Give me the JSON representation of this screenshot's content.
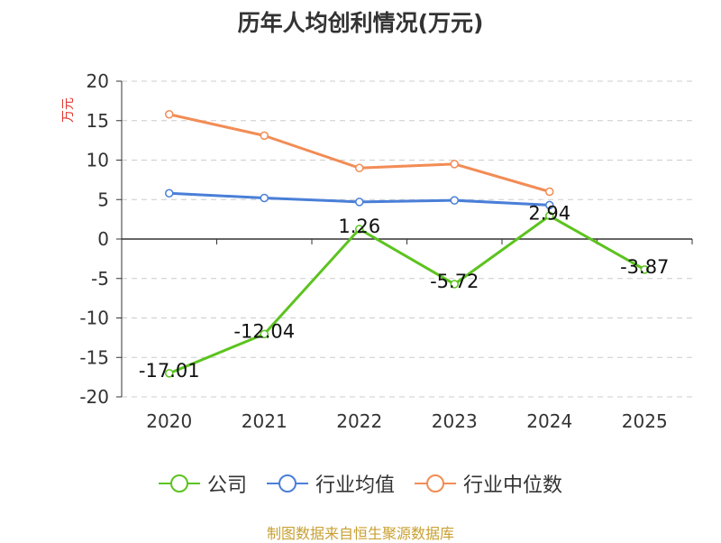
{
  "title": "历年人均创利情况(万元)",
  "source_note": "制图数据来自恒生聚源数据库",
  "chart_data": {
    "type": "line",
    "title": "历年人均创利情况(万元)",
    "ylabel": "万元",
    "xlabel": "",
    "categories": [
      "2020",
      "2021",
      "2022",
      "2023",
      "2024",
      "2025"
    ],
    "ylim": [
      -20,
      20
    ],
    "yticks": [
      20,
      15,
      10,
      5,
      0,
      -5,
      -10,
      -15,
      -20
    ],
    "grid": true,
    "legend_position": "bottom",
    "series": [
      {
        "name": "公司",
        "color": "#5cc31e",
        "values": [
          -17.01,
          -12.04,
          1.26,
          -5.72,
          2.94,
          -3.87
        ],
        "labels": [
          "-17.01",
          "-12.04",
          "1.26",
          "-5.72",
          "2.94",
          "-3.87"
        ]
      },
      {
        "name": "行业均值",
        "color": "#4a7fd8",
        "values": [
          5.8,
          5.2,
          4.7,
          4.9,
          4.3,
          null
        ]
      },
      {
        "name": "行业中位数",
        "color": "#f28c55",
        "values": [
          15.8,
          13.1,
          9.0,
          9.5,
          6.0,
          null
        ]
      }
    ]
  }
}
